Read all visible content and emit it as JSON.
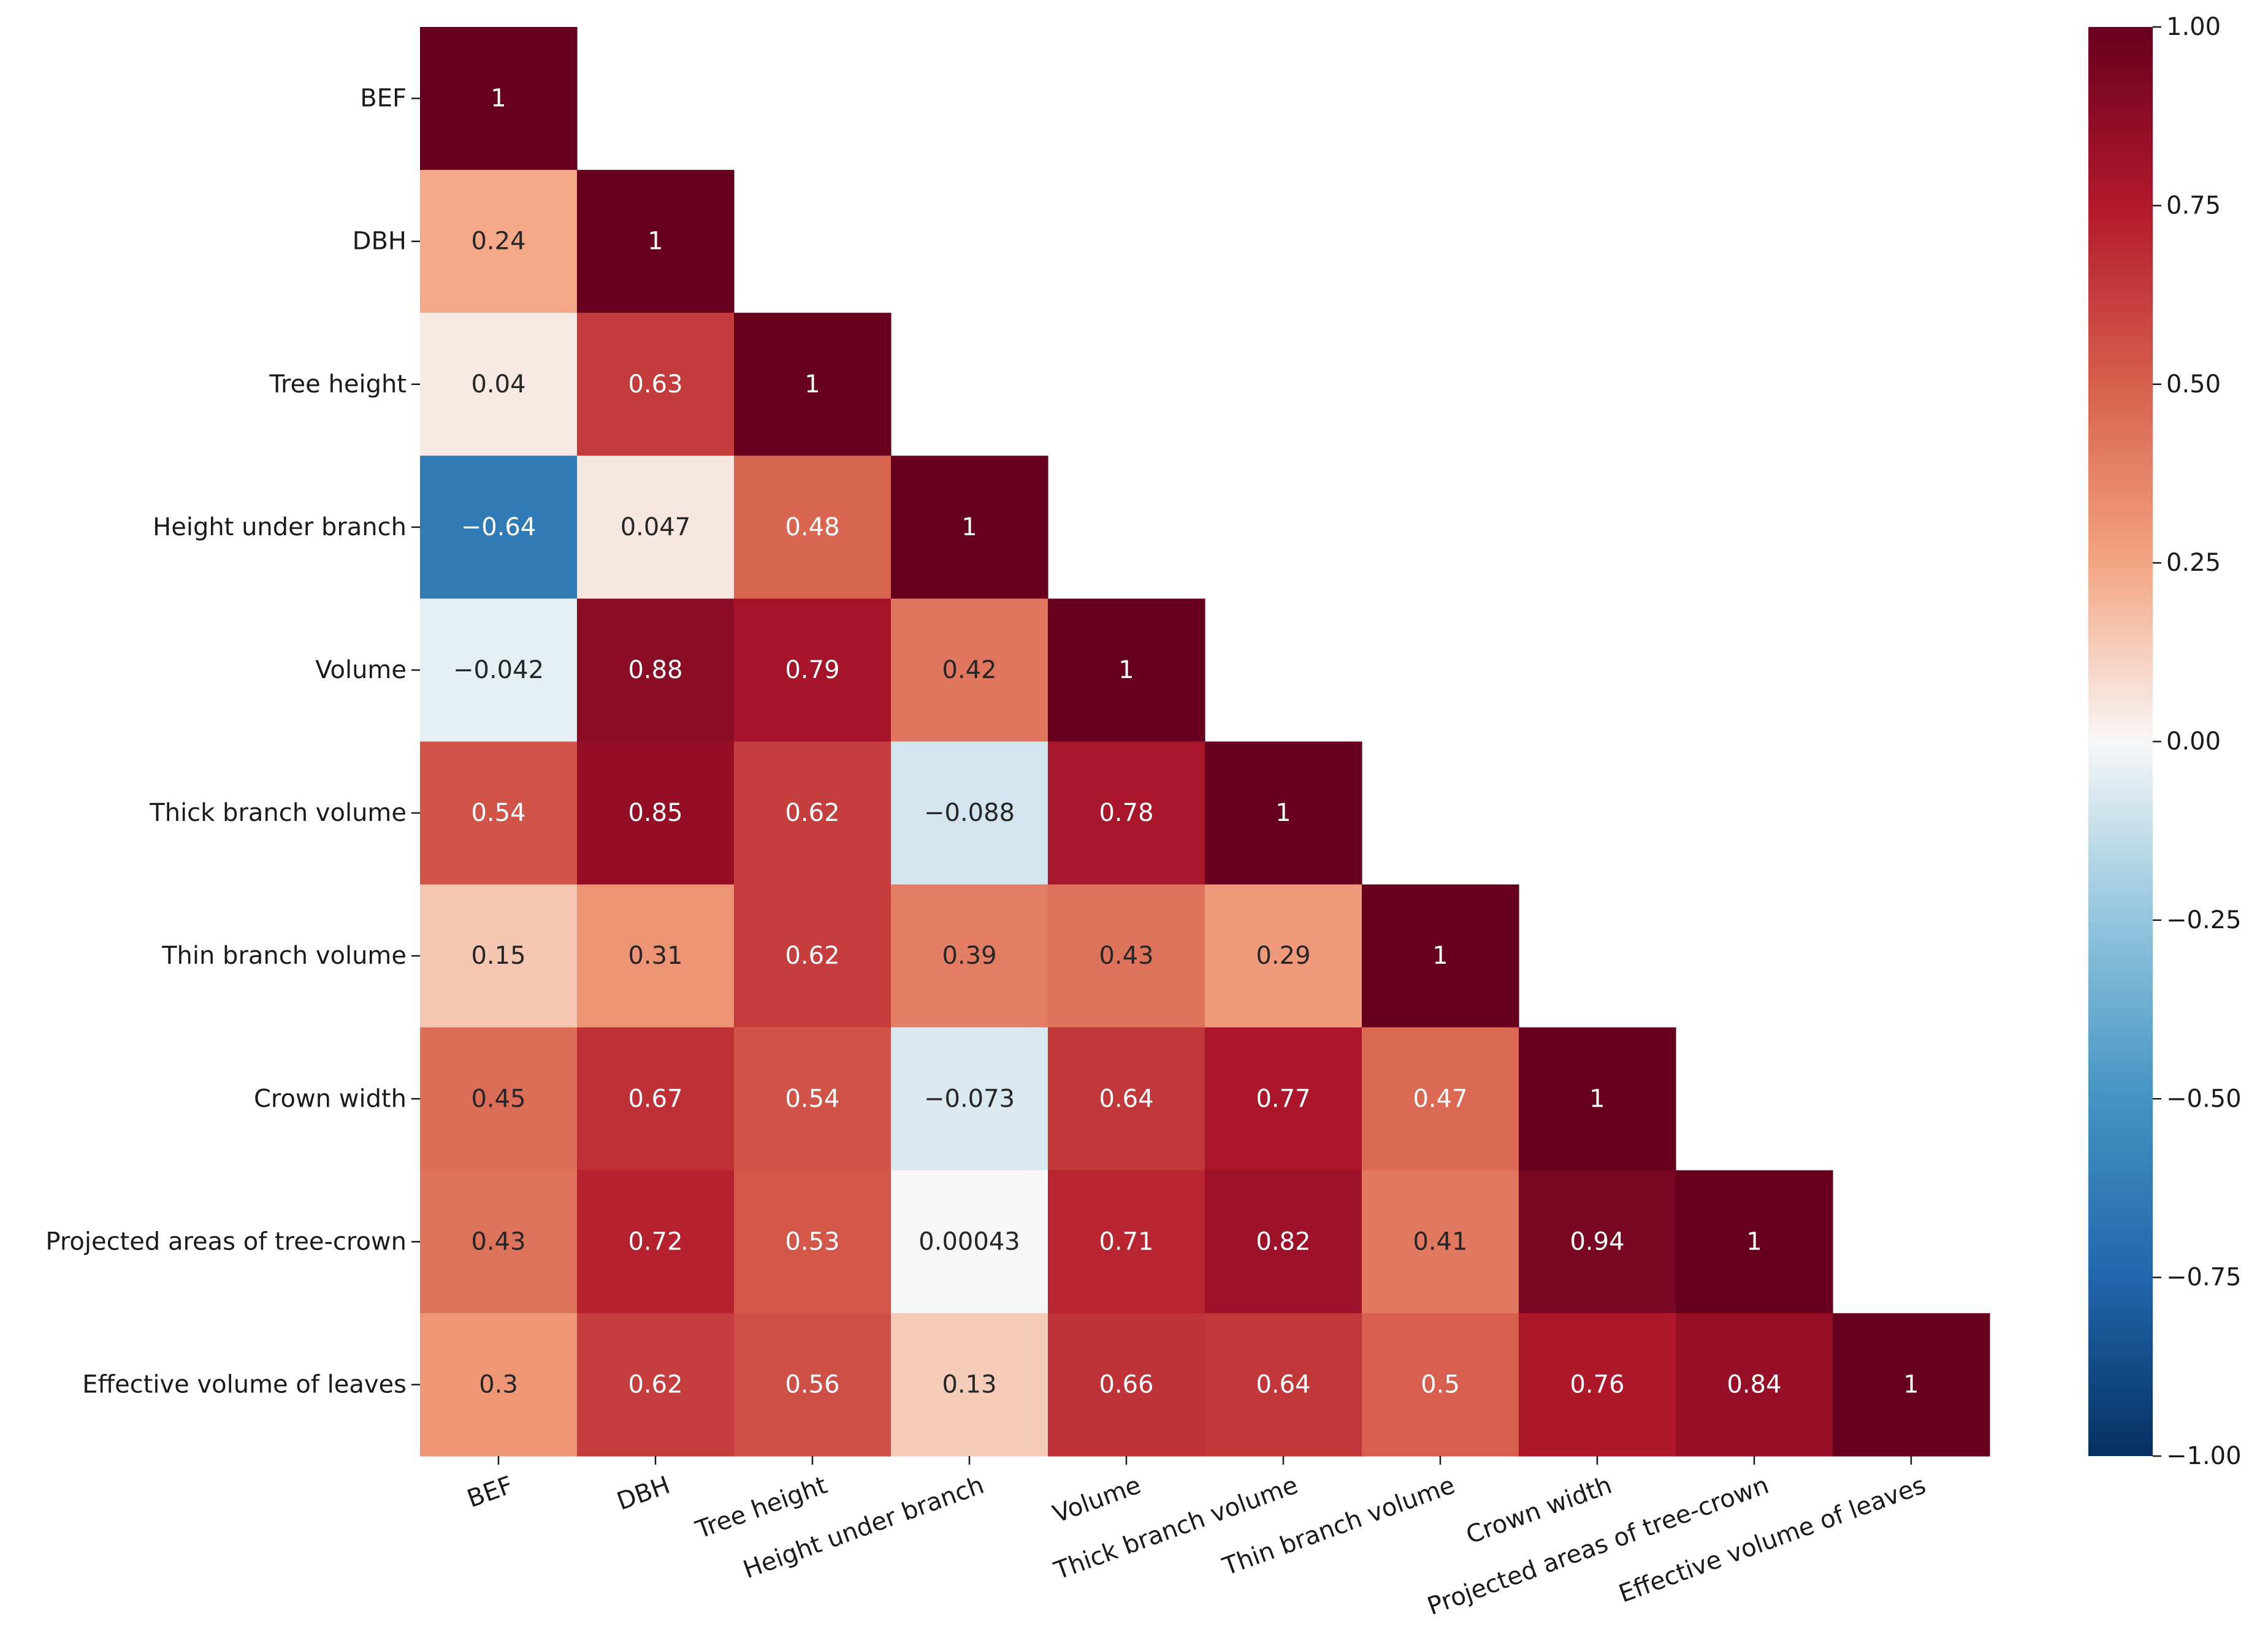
{
  "chart_data": {
    "type": "heatmap",
    "title": "",
    "variables": [
      "BEF",
      "DBH",
      "Tree height",
      "Height under branch",
      "Volume",
      "Thick branch volume",
      "Thin branch volume",
      "Crown width",
      "Projected areas of tree-crown",
      "Effective volume of leaves"
    ],
    "matrix": [
      [
        1,
        null,
        null,
        null,
        null,
        null,
        null,
        null,
        null,
        null
      ],
      [
        0.24,
        1,
        null,
        null,
        null,
        null,
        null,
        null,
        null,
        null
      ],
      [
        0.04,
        0.63,
        1,
        null,
        null,
        null,
        null,
        null,
        null,
        null
      ],
      [
        -0.64,
        0.047,
        0.48,
        1,
        null,
        null,
        null,
        null,
        null,
        null
      ],
      [
        -0.042,
        0.88,
        0.79,
        0.42,
        1,
        null,
        null,
        null,
        null,
        null
      ],
      [
        0.54,
        0.85,
        0.62,
        -0.088,
        0.78,
        1,
        null,
        null,
        null,
        null
      ],
      [
        0.15,
        0.31,
        0.62,
        0.39,
        0.43,
        0.29,
        1,
        null,
        null,
        null
      ],
      [
        0.45,
        0.67,
        0.54,
        -0.073,
        0.64,
        0.77,
        0.47,
        1,
        null,
        null
      ],
      [
        0.43,
        0.72,
        0.53,
        0.00043,
        0.71,
        0.82,
        0.41,
        0.94,
        1,
        null
      ],
      [
        0.3,
        0.62,
        0.56,
        0.13,
        0.66,
        0.64,
        0.5,
        0.76,
        0.84,
        1
      ]
    ],
    "annotations": [
      [
        "1",
        "",
        "",
        "",
        "",
        "",
        "",
        "",
        "",
        ""
      ],
      [
        "0.24",
        "1",
        "",
        "",
        "",
        "",
        "",
        "",
        "",
        ""
      ],
      [
        "0.04",
        "0.63",
        "1",
        "",
        "",
        "",
        "",
        "",
        "",
        ""
      ],
      [
        "−0.64",
        "0.047",
        "0.48",
        "1",
        "",
        "",
        "",
        "",
        "",
        ""
      ],
      [
        "−0.042",
        "0.88",
        "0.79",
        "0.42",
        "1",
        "",
        "",
        "",
        "",
        ""
      ],
      [
        "0.54",
        "0.85",
        "0.62",
        "−0.088",
        "0.78",
        "1",
        "",
        "",
        "",
        ""
      ],
      [
        "0.15",
        "0.31",
        "0.62",
        "0.39",
        "0.43",
        "0.29",
        "1",
        "",
        "",
        ""
      ],
      [
        "0.45",
        "0.67",
        "0.54",
        "−0.073",
        "0.64",
        "0.77",
        "0.47",
        "1",
        "",
        ""
      ],
      [
        "0.43",
        "0.72",
        "0.53",
        "0.00043",
        "0.71",
        "0.82",
        "0.41",
        "0.94",
        "1",
        ""
      ],
      [
        "0.3",
        "0.62",
        "0.56",
        "0.13",
        "0.66",
        "0.64",
        "0.5",
        "0.76",
        "0.84",
        "1"
      ]
    ],
    "mask": "upper-triangle",
    "colormap": "RdBu_r",
    "vmin": -1,
    "vmax": 1,
    "colorbar": {
      "range": [
        -1,
        1
      ],
      "ticks": [
        1,
        0.75,
        0.5,
        0.25,
        0,
        -0.25,
        -0.5,
        -0.75,
        -1
      ],
      "tick_labels": [
        "1.00",
        "0.75",
        "0.50",
        "0.25",
        "0.00",
        "−0.25",
        "−0.50",
        "−0.75",
        "−1.00"
      ],
      "placement": "right"
    },
    "xlabel": "",
    "ylabel": "",
    "xtick_rotation_deg": 20
  }
}
